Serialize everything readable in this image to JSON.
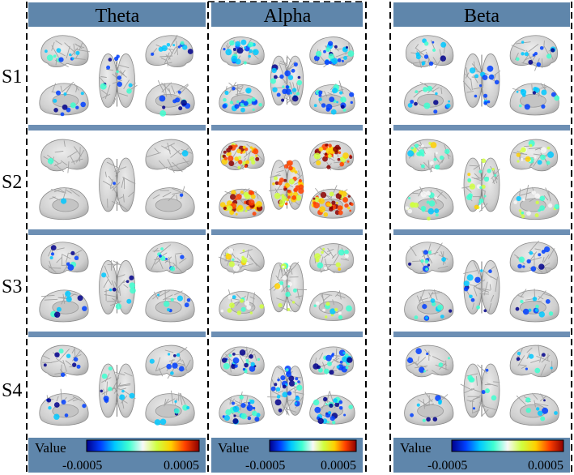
{
  "columns": [
    {
      "id": "theta",
      "title": "Theta"
    },
    {
      "id": "alpha",
      "title": "Alpha"
    },
    {
      "id": "beta",
      "title": "Beta"
    }
  ],
  "rows": [
    {
      "id": "s1",
      "label": "S1"
    },
    {
      "id": "s2",
      "label": "S2"
    },
    {
      "id": "s3",
      "label": "S3"
    },
    {
      "id": "s4",
      "label": "S4"
    }
  ],
  "colorbar": {
    "label": "Value",
    "min_label": "-0.0005",
    "max_label": "0.0005",
    "min": -0.0005,
    "max": 0.0005,
    "stops": [
      "#00008b",
      "#0040ff",
      "#00c8ff",
      "#40ffd0",
      "#f8f8f8",
      "#d0ff40",
      "#ffd000",
      "#ff4000",
      "#8b0000"
    ]
  },
  "colors": {
    "header_band": "#5f86ab",
    "separator_band": "#6d8fb4",
    "cortex": "#d6d6d6",
    "cortex_dark": "#9e9e9e"
  },
  "activation": {
    "theta": {
      "s1": 0.25,
      "s2": 0.03,
      "s3": 0.2,
      "s4": 0.2
    },
    "alpha": {
      "s1": 0.55,
      "s2": 0.95,
      "s3": 0.3,
      "s4": 0.6
    },
    "beta": {
      "s1": 0.3,
      "s2": 0.45,
      "s3": 0.25,
      "s4": 0.18
    }
  },
  "activation_sign": {
    "theta": {
      "s1": -1,
      "s2": -1,
      "s3": -1,
      "s4": -1
    },
    "alpha": {
      "s1": -1,
      "s2": 1,
      "s3": 0,
      "s4": -1
    },
    "beta": {
      "s1": -1,
      "s2": 0,
      "s3": -1,
      "s4": -1
    }
  }
}
